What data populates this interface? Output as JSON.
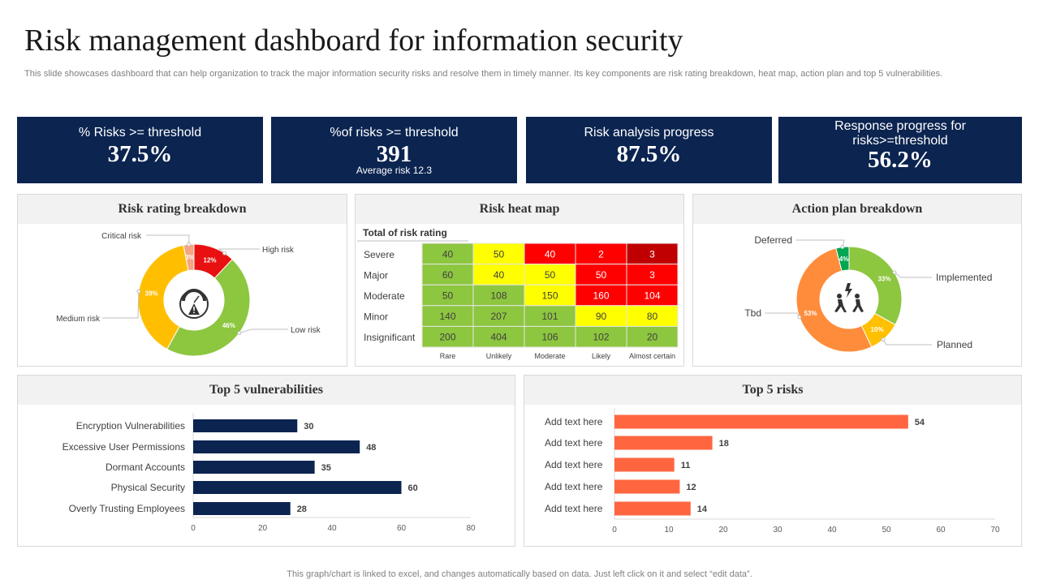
{
  "header": {
    "title": "Risk management dashboard for information security",
    "subtitle": "This slide showcases dashboard that can help organization to track the major information security risks and resolve them in timely manner. Its key components are risk rating breakdown, heat map, action plan and top 5 vulnerabilities."
  },
  "kpis": [
    {
      "label": "% Risks >= threshold",
      "value": "37.5%"
    },
    {
      "label": "%of risks >= threshold",
      "value": "391",
      "sub": "Average  risk 12.3"
    },
    {
      "label": "Risk analysis progress",
      "value": "87.5%"
    },
    {
      "label": "Response progress for risks>=threshold",
      "value": "56.2%"
    }
  ],
  "panels": {
    "risk_rating": "Risk rating breakdown",
    "heat_map": "Risk heat map",
    "action_plan": "Action plan breakdown",
    "vulnerabilities": "Top 5 vulnerabilities",
    "top_risks": "Top 5 risks"
  },
  "icons": {
    "risk_rating_center": "gauge-warning-icon",
    "action_plan_center": "conflict-people-icon"
  },
  "footer": "This graph/chart is linked to excel,  and changes automatically based on data. Just left click on it and select “edit data”.",
  "chart_data": [
    {
      "type": "pie",
      "id": "risk_rating",
      "donut": true,
      "labels": [
        "High risk",
        "Low risk",
        "Medium risk",
        "Critical risk"
      ],
      "values": [
        12,
        46,
        39,
        3
      ],
      "value_labels": [
        "12%",
        "46%",
        "39%",
        "3%"
      ],
      "colors": [
        "#e81010",
        "#8dc63f",
        "#ffbf00",
        "#f4a582"
      ]
    },
    {
      "type": "heatmap",
      "id": "heat_map",
      "title": "Total of risk rating",
      "rows": [
        "Severe",
        "Major",
        "Moderate",
        "Minor",
        "Insignificant"
      ],
      "columns": [
        "Rare",
        "Unlikely",
        "Moderate",
        "Likely",
        "Almost certain"
      ],
      "values": [
        [
          40,
          50,
          40,
          2,
          3
        ],
        [
          60,
          40,
          50,
          50,
          3
        ],
        [
          50,
          108,
          150,
          160,
          104
        ],
        [
          140,
          207,
          101,
          90,
          80
        ],
        [
          200,
          404,
          106,
          102,
          20
        ]
      ],
      "levels": [
        [
          "g",
          "y",
          "r",
          "r",
          "dr"
        ],
        [
          "g",
          "y",
          "y",
          "r",
          "r"
        ],
        [
          "g",
          "g",
          "y",
          "r",
          "r"
        ],
        [
          "g",
          "g",
          "g",
          "y",
          "y"
        ],
        [
          "g",
          "g",
          "g",
          "g",
          "g"
        ]
      ],
      "colors": {
        "g": "#8dc63f",
        "y": "#ffff00",
        "r": "#ff0000",
        "dr": "#c00000"
      }
    },
    {
      "type": "pie",
      "id": "action_plan",
      "donut": true,
      "labels": [
        "Implemented",
        "Planned",
        "Tbd",
        "Deferred"
      ],
      "values": [
        33,
        10,
        53,
        4
      ],
      "value_labels": [
        "33%",
        "10%",
        "53%",
        "4%"
      ],
      "colors": [
        "#8dc63f",
        "#ffc000",
        "#ff8c3a",
        "#00a651"
      ]
    },
    {
      "type": "bar",
      "id": "vulnerabilities",
      "orientation": "horizontal",
      "categories": [
        "Encryption Vulnerabilities",
        "Excessive User Permissions",
        "Dormant Accounts",
        "Physical Security",
        "Overly Trusting Employees"
      ],
      "values": [
        30,
        48,
        35,
        60,
        28
      ],
      "xlim": [
        0,
        80
      ],
      "xticks": [
        0,
        20,
        40,
        60,
        80
      ],
      "color": "#0b2450"
    },
    {
      "type": "bar",
      "id": "top_risks",
      "orientation": "horizontal",
      "categories": [
        "Add text here",
        "Add text here",
        "Add text here",
        "Add text here",
        "Add text here"
      ],
      "values": [
        54,
        18,
        11,
        12,
        14
      ],
      "xlim": [
        0,
        70
      ],
      "xticks": [
        0,
        10,
        20,
        30,
        40,
        50,
        60,
        70
      ],
      "color": "#ff6640"
    }
  ]
}
